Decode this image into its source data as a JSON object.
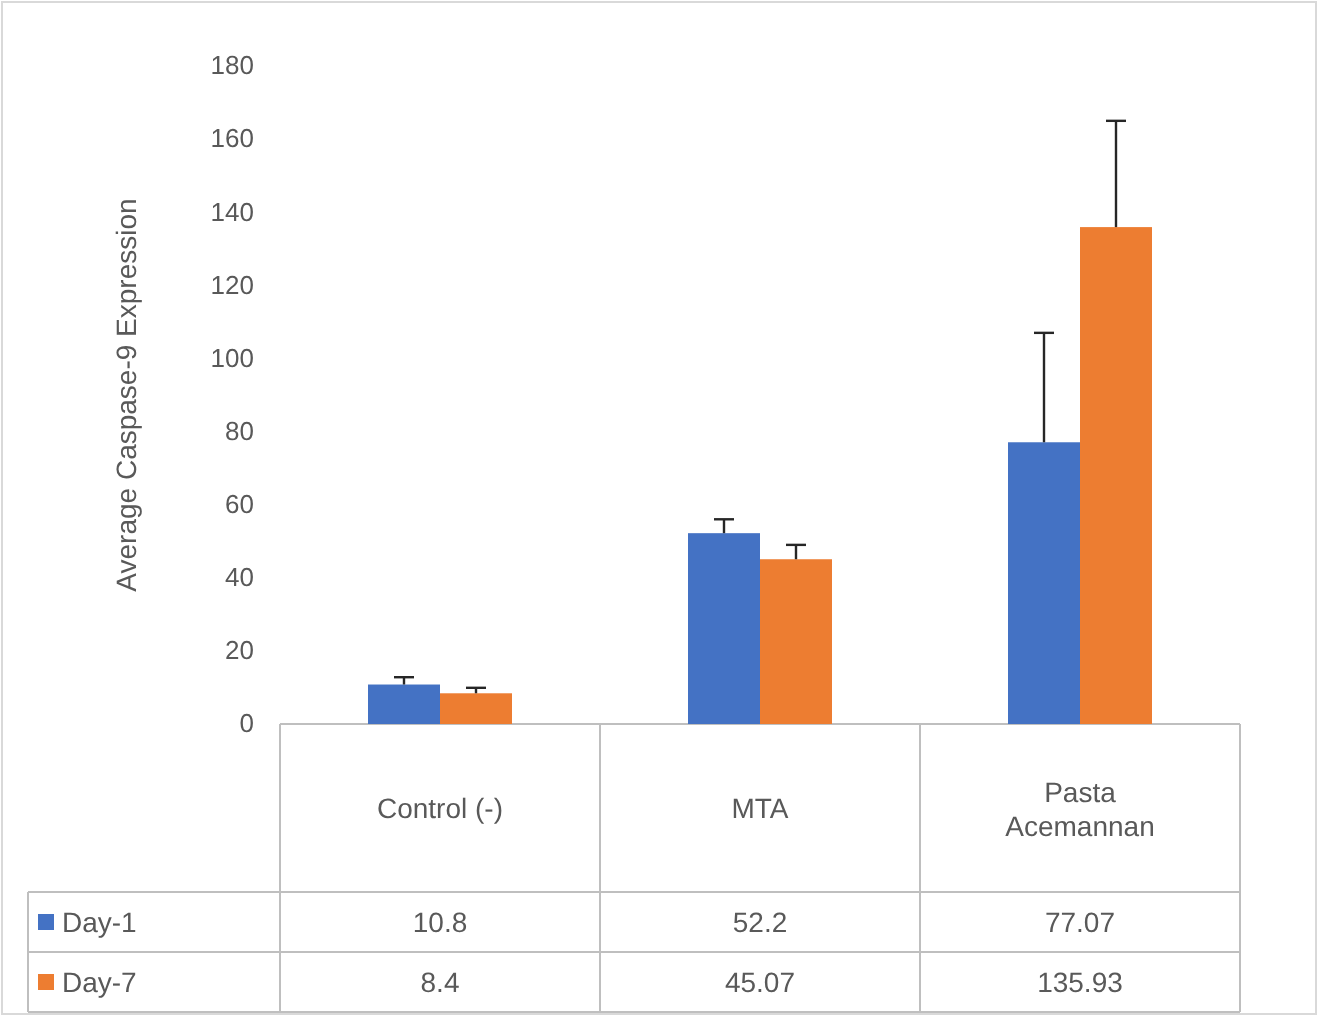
{
  "chart_data": {
    "type": "bar",
    "ylabel": "Average Caspase-9 Expression",
    "categories": [
      "Control (-)",
      "MTA",
      "Pasta Acemannan"
    ],
    "series": [
      {
        "name": "Day-1",
        "color": "#4472c4",
        "values": [
          10.8,
          52.2,
          77.07
        ],
        "errors": [
          [
            10.8,
            12.8
          ],
          [
            52.2,
            56
          ],
          [
            77.07,
            107
          ]
        ]
      },
      {
        "name": "Day-7",
        "color": "#ed7d31",
        "values": [
          8.4,
          45.07,
          135.93
        ],
        "errors": [
          [
            8.4,
            9.9
          ],
          [
            45.07,
            49
          ],
          [
            135.93,
            165
          ]
        ]
      }
    ],
    "ylim": [
      0,
      180
    ],
    "yticks": [
      0,
      20,
      40,
      60,
      80,
      100,
      120,
      140,
      160,
      180
    ],
    "grid": false,
    "legend": "bottom",
    "data_labels": true
  }
}
